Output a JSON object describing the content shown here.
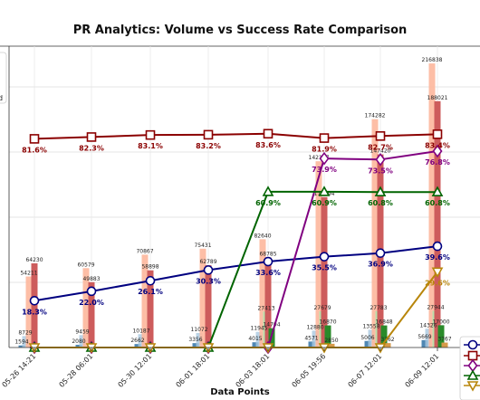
{
  "chart_data": {
    "type": "bar",
    "title": "PR Analytics: Volume vs Success Rate Comparison",
    "xlabel": "Data Points",
    "ylabel": "",
    "grid": true,
    "categories": [
      "05-26 14:21",
      "05-28 06:01",
      "05-30 12:01",
      "06-01 18:01",
      "06-03 18:01",
      "06-05 19:56",
      "06-07 12:01",
      "06-09 12:01"
    ],
    "bar_series": [
      {
        "values": [
          1594,
          2080,
          2662,
          3356,
          4015,
          4571,
          5006,
          5669
        ],
        "color": "#4f87b3",
        "fill_opacity": 1
      },
      {
        "values": [
          8729,
          9459,
          10187,
          11072,
          11945,
          12880,
          13558,
          14326
        ],
        "color": "#a9c8e0",
        "fill_opacity": 0.8
      },
      {
        "values": [
          54211,
          60579,
          70867,
          75431,
          82640,
          142177,
          174282,
          216838
        ],
        "color": "#fdb79c",
        "fill_opacity": 0.9
      },
      {
        "values": [
          0,
          0,
          0,
          0,
          27413,
          27679,
          27783,
          27944
        ],
        "color": "#b5e3ad",
        "fill_opacity": 0.9
      },
      {
        "values": [
          64230,
          49883,
          58898,
          62789,
          68785,
          114794,
          147420,
          188021
        ],
        "color": "#cd5c5c",
        "fill_opacity": 1
      },
      {
        "values": [
          0,
          0,
          0,
          0,
          14704,
          16870,
          16848,
          17000
        ],
        "color": "#2a8a2a",
        "fill_opacity": 1
      },
      {
        "values": [
          0,
          0,
          0,
          0,
          0,
          2850,
          3362,
          3767
        ],
        "color": "#d69a4a",
        "fill_opacity": 1
      }
    ],
    "bar_label_texts": [
      [
        "1594",
        "2080",
        "2662",
        "3356",
        "4015",
        "4571",
        "5006",
        "5669"
      ],
      [
        "8729",
        "9459",
        "10187",
        "11072",
        "11945",
        "12880",
        "13558",
        "14326"
      ],
      [
        "54211",
        "60579",
        "70867",
        "75431",
        "82640",
        "142177",
        "174282",
        "216838"
      ],
      [
        "",
        "",
        "",
        "",
        "27413",
        "27679",
        "27783",
        "27944"
      ],
      [
        "64230",
        "49883",
        "58898",
        "62789",
        "68785",
        "114794",
        "147420",
        "188021"
      ],
      [
        "",
        "",
        "",
        "",
        "14704",
        "16870",
        "16848",
        "17000"
      ],
      [
        "",
        "",
        "",
        "",
        "",
        "2850",
        "3362",
        "3767"
      ]
    ],
    "line_series": [
      {
        "values": [
          81.6,
          82.3,
          83.1,
          83.2,
          83.6,
          81.9,
          82.7,
          83.4
        ],
        "labels": [
          "81.6%",
          "82.3%",
          "83.1%",
          "83.2%",
          "83.6%",
          "81.9%",
          "82.7%",
          "83.4%"
        ],
        "color": "#8b0000",
        "marker": "square"
      },
      {
        "values": [
          18.3,
          22.0,
          26.1,
          30.3,
          33.6,
          35.5,
          36.9,
          39.6
        ],
        "labels": [
          "18.3%",
          "22.0%",
          "26.1%",
          "30.3%",
          "33.6%",
          "35.5%",
          "36.9%",
          "39.6%"
        ],
        "color": "#000080",
        "marker": "circle"
      },
      {
        "values": [
          0,
          0,
          0,
          0,
          0,
          73.9,
          73.5,
          76.8
        ],
        "labels": [
          "",
          "",
          "",
          "",
          "",
          "73.9%",
          "73.5%",
          "76.8%"
        ],
        "color": "#800080",
        "marker": "diamond"
      },
      {
        "values": [
          0,
          0,
          0,
          0,
          60.9,
          60.9,
          60.8,
          60.8
        ],
        "labels": [
          "",
          "",
          "",
          "",
          "60.9%",
          "60.9%",
          "60.8%",
          "60.8%"
        ],
        "color": "#006400",
        "marker": "triangle"
      },
      {
        "values": [
          0,
          0,
          0,
          0,
          0,
          0,
          0,
          29.6
        ],
        "labels": [
          "",
          "",
          "",
          "",
          "",
          "",
          "",
          "29.6%"
        ],
        "color": "#b8860b",
        "marker": "triangle-down"
      }
    ],
    "ylim_bars": [
      0,
      230000
    ],
    "ylim_rate": [
      0,
      100
    ],
    "left_legend_fragment": "d"
  }
}
